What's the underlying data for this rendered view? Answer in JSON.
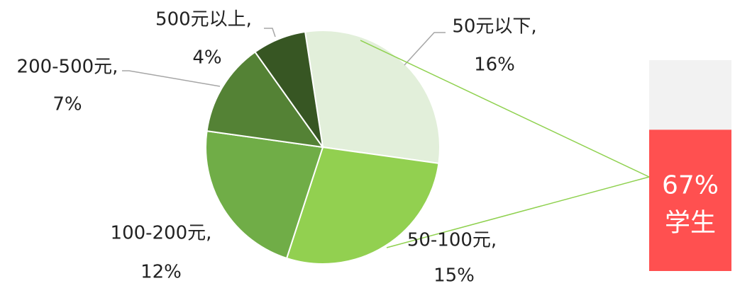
{
  "chart_data": {
    "type": "pie",
    "categories": [
      "50元以下,",
      "50-100元,",
      "100-200元,",
      "200-500元,",
      "500元以上,"
    ],
    "values": [
      16,
      15,
      12,
      7,
      4
    ],
    "value_labels": [
      "16%",
      "15%",
      "12%",
      "7%",
      "4%"
    ],
    "colors": [
      "#e2efda",
      "#92d050",
      "#70ad47",
      "#548235",
      "#375623"
    ],
    "bar": {
      "categories": [
        null,
        "学生"
      ],
      "values": [
        33,
        67
      ],
      "value_labels": [
        null,
        "67%"
      ],
      "colors": [
        "#f2f2f2",
        "#ff5050"
      ]
    }
  }
}
